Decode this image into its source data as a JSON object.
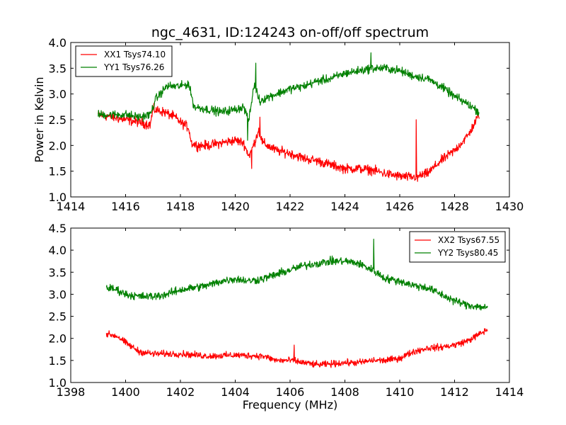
{
  "chart_data": [
    {
      "type": "line",
      "title": "ngc_4631, ID:124243 on-off/off spectrum",
      "xlabel": "",
      "ylabel": "Power in Kelvin",
      "xlim": [
        1414,
        1430
      ],
      "ylim": [
        1.0,
        4.0
      ],
      "xticks": [
        1414,
        1416,
        1418,
        1420,
        1422,
        1424,
        1426,
        1428,
        1430
      ],
      "yticks": [
        1.0,
        1.5,
        2.0,
        2.5,
        3.0,
        3.5,
        4.0
      ],
      "xtick_labels": [
        "1414",
        "1416",
        "1418",
        "1420",
        "1422",
        "1424",
        "1426",
        "1428",
        "1430"
      ],
      "ytick_labels": [
        "1.0",
        "1.5",
        "2.0",
        "2.5",
        "3.0",
        "3.5",
        "4.0"
      ],
      "legend_position": "top-left",
      "series": [
        {
          "name": "XX1 Tsys74.10",
          "color": "#ff0000",
          "noise": 0.11,
          "x": [
            1415.0,
            1415.5,
            1416.0,
            1416.5,
            1416.9,
            1417.0,
            1417.4,
            1417.8,
            1418.0,
            1418.3,
            1418.4,
            1418.6,
            1419.0,
            1419.5,
            1420.0,
            1420.3,
            1420.5,
            1420.7,
            1420.85,
            1421.0,
            1421.5,
            1422.0,
            1422.5,
            1423.0,
            1423.5,
            1424.0,
            1424.5,
            1425.0,
            1425.5,
            1426.0,
            1426.5,
            1427.0,
            1427.5,
            1428.0,
            1428.5,
            1428.9
          ],
          "y": [
            2.6,
            2.55,
            2.5,
            2.45,
            2.4,
            2.7,
            2.65,
            2.55,
            2.45,
            2.35,
            2.05,
            2.0,
            2.0,
            2.05,
            2.1,
            2.05,
            1.8,
            2.05,
            2.3,
            2.05,
            1.9,
            1.85,
            1.75,
            1.7,
            1.62,
            1.55,
            1.55,
            1.52,
            1.45,
            1.4,
            1.38,
            1.45,
            1.7,
            1.9,
            2.2,
            2.6
          ],
          "spikes": [
            {
              "x": 1420.6,
              "y": 1.55
            },
            {
              "x": 1420.9,
              "y": 2.55
            },
            {
              "x": 1426.6,
              "y": 2.5
            },
            {
              "x": 1426.65,
              "y": 1.3
            }
          ]
        },
        {
          "name": "YY1 Tsys76.26",
          "color": "#008000",
          "noise": 0.1,
          "x": [
            1415.0,
            1415.5,
            1416.0,
            1416.5,
            1416.9,
            1417.1,
            1417.5,
            1418.0,
            1418.3,
            1418.5,
            1419.0,
            1419.5,
            1420.0,
            1420.3,
            1420.5,
            1420.7,
            1420.9,
            1421.0,
            1421.5,
            1422.0,
            1422.5,
            1423.0,
            1423.5,
            1424.0,
            1424.5,
            1425.0,
            1425.5,
            1426.0,
            1426.5,
            1427.0,
            1427.5,
            1428.0,
            1428.5,
            1428.9
          ],
          "y": [
            2.6,
            2.6,
            2.6,
            2.55,
            2.6,
            2.9,
            3.15,
            3.15,
            3.2,
            2.75,
            2.7,
            2.65,
            2.7,
            2.75,
            2.5,
            3.2,
            2.85,
            2.9,
            3.0,
            3.1,
            3.15,
            3.25,
            3.3,
            3.4,
            3.45,
            3.5,
            3.5,
            3.45,
            3.35,
            3.3,
            3.15,
            2.95,
            2.8,
            2.65
          ],
          "spikes": [
            {
              "x": 1420.45,
              "y": 2.1
            },
            {
              "x": 1420.65,
              "y": 3.1
            },
            {
              "x": 1420.75,
              "y": 3.6
            },
            {
              "x": 1424.95,
              "y": 3.8
            }
          ]
        }
      ]
    },
    {
      "type": "line",
      "title": "",
      "xlabel": "Frequency (MHz)",
      "ylabel": "",
      "xlim": [
        1398,
        1414
      ],
      "ylim": [
        1.0,
        4.5
      ],
      "xticks": [
        1398,
        1400,
        1402,
        1404,
        1406,
        1408,
        1410,
        1412,
        1414
      ],
      "yticks": [
        1.0,
        1.5,
        2.0,
        2.5,
        3.0,
        3.5,
        4.0,
        4.5
      ],
      "xtick_labels": [
        "1398",
        "1400",
        "1402",
        "1404",
        "1406",
        "1408",
        "1410",
        "1412",
        "1414"
      ],
      "ytick_labels": [
        "1.0",
        "1.5",
        "2.0",
        "2.5",
        "3.0",
        "3.5",
        "4.0",
        "4.5"
      ],
      "legend_position": "top-right",
      "series": [
        {
          "name": "XX2 Tsys67.55",
          "color": "#ff0000",
          "noise": 0.09,
          "x": [
            1399.3,
            1399.7,
            1400.0,
            1400.5,
            1401.0,
            1402.0,
            1403.0,
            1404.0,
            1405.0,
            1405.5,
            1406.0,
            1406.5,
            1407.0,
            1407.5,
            1408.0,
            1408.5,
            1409.0,
            1409.5,
            1410.0,
            1410.5,
            1411.0,
            1411.5,
            1412.0,
            1412.5,
            1413.2
          ],
          "y": [
            2.1,
            2.05,
            1.9,
            1.7,
            1.65,
            1.65,
            1.6,
            1.62,
            1.6,
            1.5,
            1.5,
            1.45,
            1.4,
            1.42,
            1.45,
            1.45,
            1.5,
            1.5,
            1.55,
            1.7,
            1.78,
            1.8,
            1.85,
            1.95,
            2.2
          ],
          "spikes": [
            {
              "x": 1406.15,
              "y": 1.85
            }
          ]
        },
        {
          "name": "YY2 Tsys80.45",
          "color": "#008000",
          "noise": 0.11,
          "x": [
            1399.3,
            1399.7,
            1400.0,
            1400.5,
            1401.0,
            1401.5,
            1402.0,
            1402.5,
            1403.0,
            1403.5,
            1404.0,
            1404.5,
            1405.0,
            1405.5,
            1406.0,
            1406.5,
            1407.0,
            1407.5,
            1408.0,
            1408.5,
            1409.0,
            1409.5,
            1410.0,
            1410.5,
            1411.0,
            1411.5,
            1412.0,
            1412.5,
            1413.2
          ],
          "y": [
            3.15,
            3.1,
            3.0,
            2.95,
            2.95,
            3.0,
            3.1,
            3.15,
            3.2,
            3.3,
            3.35,
            3.3,
            3.35,
            3.45,
            3.55,
            3.65,
            3.7,
            3.75,
            3.75,
            3.7,
            3.55,
            3.35,
            3.3,
            3.2,
            3.15,
            3.0,
            2.85,
            2.75,
            2.7
          ],
          "spikes": [
            {
              "x": 1409.05,
              "y": 4.25
            }
          ]
        }
      ]
    }
  ]
}
